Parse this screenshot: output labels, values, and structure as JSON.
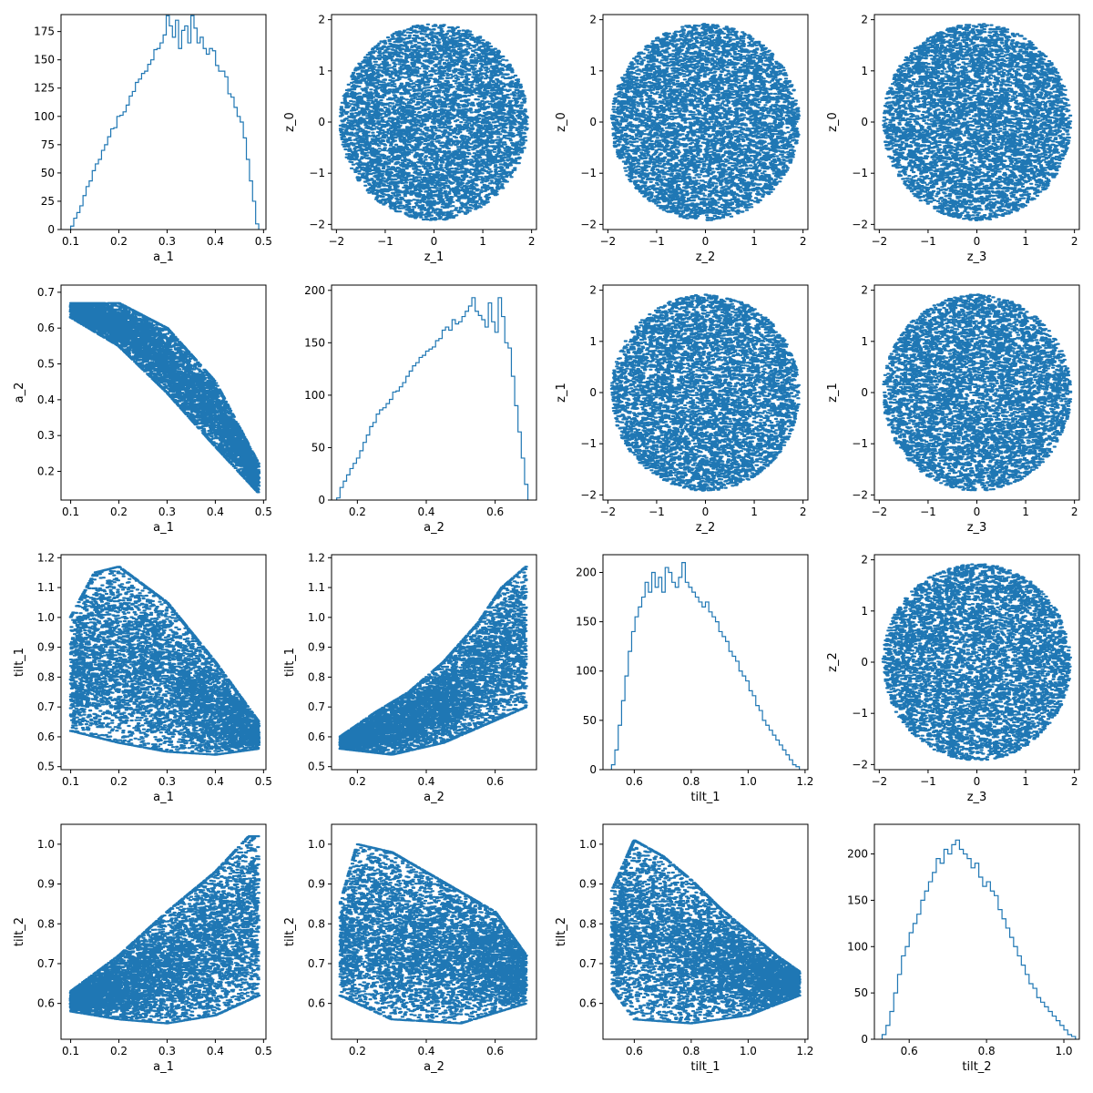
{
  "figure": {
    "accent_color": "#1f77b4",
    "layout": "4x4 corner plot: histograms on diagonal, scatter plots elsewhere"
  },
  "chart_data": [
    {
      "type": "histogram",
      "row": 0,
      "col": 0,
      "xlabel": "a_1",
      "ylabel": "",
      "xlim": [
        0.08,
        0.505
      ],
      "ylim": [
        0,
        190
      ],
      "xticks": [
        0.1,
        0.2,
        0.3,
        0.4,
        0.5
      ],
      "xtick_labels": [
        "0.1",
        "0.2",
        "0.3",
        "0.4",
        "0.5"
      ],
      "yticks": [
        0,
        25,
        50,
        75,
        100,
        125,
        150,
        175
      ],
      "ytick_labels": [
        "0",
        "25",
        "50",
        "75",
        "100",
        "125",
        "150",
        "175"
      ],
      "bin_range": [
        0.1,
        0.49
      ],
      "counts": [
        3,
        10,
        15,
        21,
        30,
        38,
        43,
        52,
        58,
        62,
        70,
        75,
        82,
        89,
        90,
        100,
        101,
        104,
        110,
        118,
        122,
        130,
        133,
        138,
        140,
        146,
        150,
        159,
        160,
        165,
        172,
        189,
        180,
        170,
        185,
        160,
        176,
        180,
        165,
        189,
        178,
        165,
        170,
        160,
        155,
        160,
        158,
        145,
        140,
        140,
        135,
        120,
        117,
        108,
        100,
        95,
        81,
        62,
        43,
        25,
        5
      ]
    },
    {
      "type": "scatter",
      "row": 0,
      "col": 1,
      "xlabel": "z_1",
      "ylabel": "z_0",
      "xlim": [
        -2.1,
        2.1
      ],
      "ylim": [
        -2.1,
        2.1
      ],
      "xticks": [
        -2,
        -1,
        0,
        1,
        2
      ],
      "xtick_labels": [
        "−2",
        "−1",
        "0",
        "1",
        "2"
      ],
      "yticks": [
        -2,
        -1,
        0,
        1,
        2
      ],
      "ytick_labels": [
        "−2",
        "−1",
        "0",
        "1",
        "2"
      ],
      "distribution": "uniform disk",
      "center": [
        0,
        0
      ],
      "radius": 1.92,
      "points": 6000
    },
    {
      "type": "scatter",
      "row": 0,
      "col": 2,
      "xlabel": "z_2",
      "ylabel": "z_0",
      "xlim": [
        -2.1,
        2.1
      ],
      "ylim": [
        -2.1,
        2.1
      ],
      "xticks": [
        -2,
        -1,
        0,
        1,
        2
      ],
      "xtick_labels": [
        "−2",
        "−1",
        "0",
        "1",
        "2"
      ],
      "yticks": [
        -2,
        -1,
        0,
        1,
        2
      ],
      "ytick_labels": [
        "−2",
        "−1",
        "0",
        "1",
        "2"
      ],
      "distribution": "uniform disk",
      "center": [
        0,
        0
      ],
      "radius": 1.92,
      "points": 6000
    },
    {
      "type": "scatter",
      "row": 0,
      "col": 3,
      "xlabel": "z_3",
      "ylabel": "z_0",
      "xlim": [
        -2.1,
        2.1
      ],
      "ylim": [
        -2.1,
        2.1
      ],
      "xticks": [
        -2,
        -1,
        0,
        1,
        2
      ],
      "xtick_labels": [
        "−2",
        "−1",
        "0",
        "1",
        "2"
      ],
      "yticks": [
        -2,
        -1,
        0,
        1,
        2
      ],
      "ytick_labels": [
        "−2",
        "−1",
        "0",
        "1",
        "2"
      ],
      "distribution": "uniform disk",
      "center": [
        0,
        0
      ],
      "radius": 1.92,
      "points": 6000
    },
    {
      "type": "scatter",
      "row": 1,
      "col": 0,
      "xlabel": "a_1",
      "ylabel": "a_2",
      "xlim": [
        0.08,
        0.505
      ],
      "ylim": [
        0.12,
        0.72
      ],
      "xticks": [
        0.1,
        0.2,
        0.3,
        0.4,
        0.5
      ],
      "xtick_labels": [
        "0.1",
        "0.2",
        "0.3",
        "0.4",
        "0.5"
      ],
      "yticks": [
        0.2,
        0.3,
        0.4,
        0.5,
        0.6,
        0.7
      ],
      "ytick_labels": [
        "0.2",
        "0.3",
        "0.4",
        "0.5",
        "0.6",
        "0.7"
      ],
      "distribution": "band",
      "x_range": [
        0.1,
        0.49
      ],
      "upper_edge": [
        [
          0.1,
          0.67
        ],
        [
          0.2,
          0.67
        ],
        [
          0.3,
          0.6
        ],
        [
          0.4,
          0.45
        ],
        [
          0.49,
          0.22
        ]
      ],
      "lower_edge": [
        [
          0.1,
          0.63
        ],
        [
          0.2,
          0.55
        ],
        [
          0.3,
          0.42
        ],
        [
          0.4,
          0.27
        ],
        [
          0.49,
          0.14
        ]
      ],
      "points": 6000
    },
    {
      "type": "histogram",
      "row": 1,
      "col": 1,
      "xlabel": "a_2",
      "ylabel": "",
      "xlim": [
        0.125,
        0.72
      ],
      "ylim": [
        0,
        205
      ],
      "xticks": [
        0.2,
        0.4,
        0.6
      ],
      "xtick_labels": [
        "0.2",
        "0.4",
        "0.6"
      ],
      "yticks": [
        0,
        50,
        100,
        150,
        200
      ],
      "ytick_labels": [
        "0",
        "50",
        "100",
        "150",
        "200"
      ],
      "bin_range": [
        0.14,
        0.695
      ],
      "counts": [
        2,
        12,
        18,
        24,
        30,
        35,
        40,
        47,
        55,
        62,
        70,
        74,
        82,
        86,
        88,
        92,
        96,
        103,
        104,
        108,
        112,
        118,
        123,
        128,
        131,
        136,
        138,
        142,
        144,
        146,
        152,
        154,
        162,
        165,
        162,
        172,
        168,
        170,
        175,
        180,
        185,
        193,
        180,
        176,
        172,
        165,
        188,
        170,
        160,
        193,
        175,
        150,
        145,
        118,
        90,
        65,
        40,
        15
      ]
    },
    {
      "type": "scatter",
      "row": 1,
      "col": 2,
      "xlabel": "z_2",
      "ylabel": "z_1",
      "xlim": [
        -2.1,
        2.1
      ],
      "ylim": [
        -2.1,
        2.1
      ],
      "xticks": [
        -2,
        -1,
        0,
        1,
        2
      ],
      "xtick_labels": [
        "−2",
        "−1",
        "0",
        "1",
        "2"
      ],
      "yticks": [
        -2,
        -1,
        0,
        1,
        2
      ],
      "ytick_labels": [
        "−2",
        "−1",
        "0",
        "1",
        "2"
      ],
      "distribution": "uniform disk",
      "center": [
        0,
        0
      ],
      "radius": 1.92,
      "points": 6000
    },
    {
      "type": "scatter",
      "row": 1,
      "col": 3,
      "xlabel": "z_3",
      "ylabel": "z_1",
      "xlim": [
        -2.1,
        2.1
      ],
      "ylim": [
        -2.1,
        2.1
      ],
      "xticks": [
        -2,
        -1,
        0,
        1,
        2
      ],
      "xtick_labels": [
        "−2",
        "−1",
        "0",
        "1",
        "2"
      ],
      "yticks": [
        -2,
        -1,
        0,
        1,
        2
      ],
      "ytick_labels": [
        "−2",
        "−1",
        "0",
        "1",
        "2"
      ],
      "distribution": "uniform disk",
      "center": [
        0,
        0
      ],
      "radius": 1.92,
      "points": 6000
    },
    {
      "type": "scatter",
      "row": 2,
      "col": 0,
      "xlabel": "a_1",
      "ylabel": "tilt_1",
      "xlim": [
        0.08,
        0.505
      ],
      "ylim": [
        0.49,
        1.21
      ],
      "xticks": [
        0.1,
        0.2,
        0.3,
        0.4,
        0.5
      ],
      "xtick_labels": [
        "0.1",
        "0.2",
        "0.3",
        "0.4",
        "0.5"
      ],
      "yticks": [
        0.5,
        0.6,
        0.7,
        0.8,
        0.9,
        1.0,
        1.1,
        1.2
      ],
      "ytick_labels": [
        "0.5",
        "0.6",
        "0.7",
        "0.8",
        "0.9",
        "1.0",
        "1.1",
        "1.2"
      ],
      "distribution": "band",
      "x_range": [
        0.1,
        0.49
      ],
      "upper_edge": [
        [
          0.1,
          1.0
        ],
        [
          0.15,
          1.15
        ],
        [
          0.2,
          1.17
        ],
        [
          0.3,
          1.05
        ],
        [
          0.4,
          0.85
        ],
        [
          0.49,
          0.65
        ]
      ],
      "lower_edge": [
        [
          0.1,
          0.62
        ],
        [
          0.2,
          0.58
        ],
        [
          0.3,
          0.55
        ],
        [
          0.4,
          0.54
        ],
        [
          0.49,
          0.56
        ]
      ],
      "points": 6000
    },
    {
      "type": "scatter",
      "row": 2,
      "col": 1,
      "xlabel": "a_2",
      "ylabel": "tilt_1",
      "xlim": [
        0.125,
        0.72
      ],
      "ylim": [
        0.49,
        1.21
      ],
      "xticks": [
        0.2,
        0.4,
        0.6
      ],
      "xtick_labels": [
        "0.2",
        "0.4",
        "0.6"
      ],
      "yticks": [
        0.5,
        0.6,
        0.7,
        0.8,
        0.9,
        1.0,
        1.1,
        1.2
      ],
      "ytick_labels": [
        "0.5",
        "0.6",
        "0.7",
        "0.8",
        "0.9",
        "1.0",
        "1.1",
        "1.2"
      ],
      "distribution": "band",
      "x_range": [
        0.15,
        0.69
      ],
      "upper_edge": [
        [
          0.15,
          0.6
        ],
        [
          0.25,
          0.68
        ],
        [
          0.35,
          0.75
        ],
        [
          0.45,
          0.85
        ],
        [
          0.55,
          0.98
        ],
        [
          0.62,
          1.1
        ],
        [
          0.69,
          1.17
        ]
      ],
      "lower_edge": [
        [
          0.15,
          0.56
        ],
        [
          0.3,
          0.54
        ],
        [
          0.45,
          0.58
        ],
        [
          0.55,
          0.63
        ],
        [
          0.69,
          0.7
        ]
      ],
      "points": 6000
    },
    {
      "type": "histogram",
      "row": 2,
      "col": 2,
      "xlabel": "tilt_1",
      "ylabel": "",
      "xlim": [
        0.49,
        1.21
      ],
      "ylim": [
        0,
        218
      ],
      "xticks": [
        0.6,
        0.8,
        1.0,
        1.2
      ],
      "xtick_labels": [
        "0.6",
        "0.8",
        "1.0",
        "1.2"
      ],
      "yticks": [
        0,
        50,
        100,
        150,
        200
      ],
      "ytick_labels": [
        "0",
        "50",
        "100",
        "150",
        "200"
      ],
      "bin_range": [
        0.52,
        1.18
      ],
      "counts": [
        5,
        20,
        45,
        70,
        95,
        120,
        140,
        155,
        165,
        175,
        190,
        180,
        200,
        185,
        195,
        180,
        205,
        200,
        190,
        185,
        195,
        210,
        190,
        185,
        180,
        175,
        170,
        165,
        170,
        160,
        155,
        150,
        140,
        135,
        130,
        120,
        115,
        110,
        100,
        95,
        90,
        80,
        75,
        65,
        60,
        50,
        45,
        40,
        35,
        30,
        25,
        20,
        15,
        10,
        5,
        3
      ]
    },
    {
      "type": "scatter",
      "row": 2,
      "col": 3,
      "xlabel": "z_3",
      "ylabel": "z_2",
      "xlim": [
        -2.1,
        2.1
      ],
      "ylim": [
        -2.1,
        2.1
      ],
      "xticks": [
        -2,
        -1,
        0,
        1,
        2
      ],
      "xtick_labels": [
        "−2",
        "−1",
        "0",
        "1",
        "2"
      ],
      "yticks": [
        -2,
        -1,
        0,
        1,
        2
      ],
      "ytick_labels": [
        "−2",
        "−1",
        "0",
        "1",
        "2"
      ],
      "distribution": "uniform disk",
      "center": [
        0,
        0
      ],
      "radius": 1.92,
      "points": 6000
    },
    {
      "type": "scatter",
      "row": 3,
      "col": 0,
      "xlabel": "a_1",
      "ylabel": "tilt_2",
      "xlim": [
        0.08,
        0.505
      ],
      "ylim": [
        0.51,
        1.05
      ],
      "xticks": [
        0.1,
        0.2,
        0.3,
        0.4,
        0.5
      ],
      "xtick_labels": [
        "0.1",
        "0.2",
        "0.3",
        "0.4",
        "0.5"
      ],
      "yticks": [
        0.6,
        0.7,
        0.8,
        0.9,
        1.0
      ],
      "ytick_labels": [
        "0.6",
        "0.7",
        "0.8",
        "0.9",
        "1.0"
      ],
      "distribution": "band",
      "x_range": [
        0.1,
        0.49
      ],
      "upper_edge": [
        [
          0.1,
          0.63
        ],
        [
          0.2,
          0.72
        ],
        [
          0.3,
          0.83
        ],
        [
          0.4,
          0.93
        ],
        [
          0.47,
          1.02
        ]
      ],
      "lower_edge": [
        [
          0.1,
          0.58
        ],
        [
          0.2,
          0.56
        ],
        [
          0.3,
          0.55
        ],
        [
          0.4,
          0.57
        ],
        [
          0.49,
          0.62
        ]
      ],
      "points": 6000
    },
    {
      "type": "scatter",
      "row": 3,
      "col": 1,
      "xlabel": "a_2",
      "ylabel": "tilt_2",
      "xlim": [
        0.125,
        0.72
      ],
      "ylim": [
        0.51,
        1.05
      ],
      "xticks": [
        0.2,
        0.4,
        0.6
      ],
      "xtick_labels": [
        "0.2",
        "0.4",
        "0.6"
      ],
      "yticks": [
        0.6,
        0.7,
        0.8,
        0.9,
        1.0
      ],
      "ytick_labels": [
        "0.6",
        "0.7",
        "0.8",
        "0.9",
        "1.0"
      ],
      "distribution": "band",
      "x_range": [
        0.15,
        0.69
      ],
      "upper_edge": [
        [
          0.15,
          0.85
        ],
        [
          0.2,
          1.0
        ],
        [
          0.3,
          0.98
        ],
        [
          0.4,
          0.93
        ],
        [
          0.5,
          0.88
        ],
        [
          0.6,
          0.83
        ],
        [
          0.69,
          0.72
        ]
      ],
      "lower_edge": [
        [
          0.15,
          0.62
        ],
        [
          0.3,
          0.56
        ],
        [
          0.5,
          0.55
        ],
        [
          0.69,
          0.6
        ]
      ],
      "points": 6000
    },
    {
      "type": "scatter",
      "row": 3,
      "col": 2,
      "xlabel": "tilt_1",
      "ylabel": "tilt_2",
      "xlim": [
        0.49,
        1.21
      ],
      "ylim": [
        0.51,
        1.05
      ],
      "xticks": [
        0.6,
        0.8,
        1.0,
        1.2
      ],
      "xtick_labels": [
        "0.6",
        "0.8",
        "1.0",
        "1.2"
      ],
      "yticks": [
        0.6,
        0.7,
        0.8,
        0.9,
        1.0
      ],
      "ytick_labels": [
        "0.6",
        "0.7",
        "0.8",
        "0.9",
        "1.0"
      ],
      "distribution": "band",
      "x_range": [
        0.52,
        1.18
      ],
      "upper_edge": [
        [
          0.52,
          0.88
        ],
        [
          0.6,
          1.01
        ],
        [
          0.7,
          0.97
        ],
        [
          0.8,
          0.91
        ],
        [
          0.9,
          0.84
        ],
        [
          1.0,
          0.78
        ],
        [
          1.1,
          0.72
        ],
        [
          1.18,
          0.68
        ]
      ],
      "lower_edge": [
        [
          0.52,
          0.64
        ],
        [
          0.6,
          0.56
        ],
        [
          0.8,
          0.55
        ],
        [
          1.0,
          0.57
        ],
        [
          1.18,
          0.62
        ]
      ],
      "points": 6000
    },
    {
      "type": "histogram",
      "row": 3,
      "col": 3,
      "xlabel": "tilt_2",
      "ylabel": "",
      "xlim": [
        0.51,
        1.04
      ],
      "ylim": [
        0,
        232
      ],
      "xticks": [
        0.6,
        0.8,
        1.0
      ],
      "xtick_labels": [
        "0.6",
        "0.8",
        "1.0"
      ],
      "yticks": [
        0,
        50,
        100,
        150,
        200
      ],
      "ytick_labels": [
        "0",
        "50",
        "100",
        "150",
        "200"
      ],
      "bin_range": [
        0.53,
        1.03
      ],
      "counts": [
        5,
        15,
        30,
        50,
        70,
        90,
        100,
        115,
        125,
        135,
        150,
        160,
        170,
        180,
        195,
        190,
        205,
        200,
        210,
        215,
        205,
        200,
        195,
        185,
        190,
        175,
        165,
        170,
        160,
        155,
        140,
        130,
        120,
        110,
        100,
        90,
        80,
        70,
        60,
        55,
        45,
        40,
        35,
        30,
        25,
        20,
        15,
        10,
        5,
        3
      ]
    }
  ]
}
